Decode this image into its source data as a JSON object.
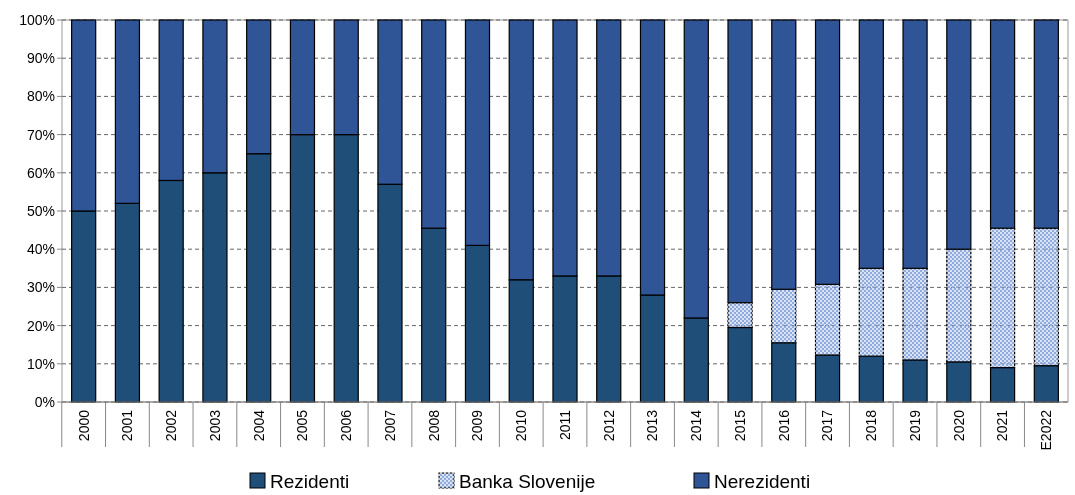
{
  "chart_data": {
    "type": "bar",
    "stacked": true,
    "categories": [
      "2000",
      "2001",
      "2002",
      "2003",
      "2004",
      "2005",
      "2006",
      "2007",
      "2008",
      "2009",
      "2010",
      "2011",
      "2012",
      "2013",
      "2014",
      "2015",
      "2016",
      "2017",
      "2018",
      "2019",
      "2020",
      "2021",
      "E2022"
    ],
    "series": [
      {
        "name": "Rezidenti",
        "color": "#1f4e79",
        "values": [
          50,
          52,
          58,
          60,
          65,
          70,
          70,
          57,
          45.5,
          41,
          32,
          33,
          33,
          28,
          22,
          19.5,
          15.5,
          12.3,
          12,
          11,
          10.5,
          9,
          9.5
        ]
      },
      {
        "name": "Banka Slovenije",
        "color": "#8faadc",
        "values": [
          0,
          0,
          0,
          0,
          0,
          0,
          0,
          0,
          0,
          0,
          0,
          0,
          0,
          0,
          0,
          6.5,
          14,
          18.5,
          23,
          24,
          29.5,
          36.5,
          36
        ]
      },
      {
        "name": "Nerezidenti",
        "color": "#2f5597",
        "values": [
          50,
          48,
          42,
          40,
          35,
          30,
          30,
          43,
          54.5,
          59,
          68,
          67,
          67,
          72,
          78,
          74,
          70.5,
          69.2,
          65,
          65,
          60,
          54.5,
          54.5
        ]
      }
    ],
    "ylim": [
      0,
      100
    ],
    "yticks": [
      {
        "value": 0,
        "label": "0%"
      },
      {
        "value": 10,
        "label": "10%"
      },
      {
        "value": 20,
        "label": "20%"
      },
      {
        "value": 30,
        "label": "30%"
      },
      {
        "value": 40,
        "label": "40%"
      },
      {
        "value": 50,
        "label": "50%"
      },
      {
        "value": 60,
        "label": "60%"
      },
      {
        "value": 70,
        "label": "70%"
      },
      {
        "value": 80,
        "label": "80%"
      },
      {
        "value": 90,
        "label": "90%"
      },
      {
        "value": 100,
        "label": "100%"
      }
    ],
    "grid": "y",
    "legend": "bottom"
  }
}
